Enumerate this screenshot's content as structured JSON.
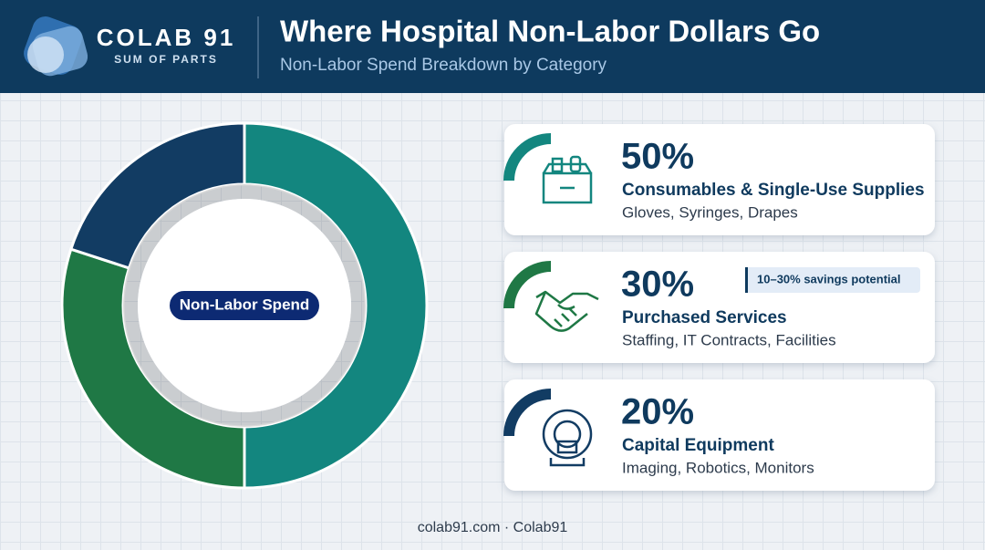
{
  "header": {
    "logo": "COLAB 91",
    "tagline": "SUM OF PARTS",
    "title": "Where Hospital Non-Labor Dollars Go",
    "subtitle": "Non-Labor Spend Breakdown by Category"
  },
  "chart_data": {
    "type": "pie",
    "center_label": "Non-Labor Spend",
    "categories": [
      "Consumables & Single-Use Supplies",
      "Purchased Services",
      "Capital Equipment"
    ],
    "values": [
      50,
      30,
      20
    ],
    "value_labels": [
      "50%",
      "30%",
      "20%"
    ],
    "details": [
      "Gloves, Syringes, Drapes",
      "Staffing, IT Contracts, Facilities",
      "Imaging, Robotics, Monitors"
    ],
    "colors": [
      "#13867f",
      "#1f7845",
      "#123c63"
    ],
    "annotation": "10–30% savings potential"
  },
  "footer": "colab91.com · Colab91"
}
